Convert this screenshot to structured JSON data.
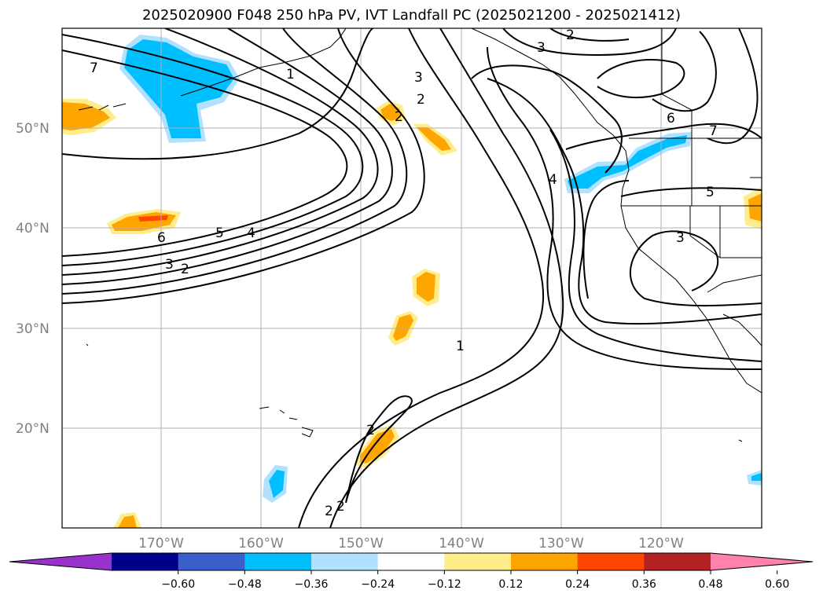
{
  "title": "2025020900 F048 250 hPa PV, IVT Landfall PC (2025021200 - 2025021412)",
  "map": {
    "lat_labels": [
      "50°N",
      "40°N",
      "30°N",
      "20°N"
    ],
    "lon_labels": [
      "170°W",
      "160°W",
      "150°W",
      "140°W",
      "130°W",
      "120°W"
    ],
    "contour_labels": [
      "7",
      "1",
      "3",
      "2",
      "3",
      "2",
      "2",
      "4",
      "6",
      "7",
      "5",
      "3",
      "6",
      "5",
      "4",
      "3",
      "2",
      "1",
      "2",
      "2",
      "2"
    ]
  },
  "colorbar": {
    "ticks": [
      "−0.60",
      "−0.48",
      "−0.36",
      "−0.24",
      "−0.12",
      "0.12",
      "0.24",
      "0.36",
      "0.48",
      "0.60"
    ],
    "colors": [
      "#9932cc",
      "#00008b",
      "#3a5fcd",
      "#00bfff",
      "#b0e2ff",
      "#ffffff",
      "#ffec8b",
      "#ffa500",
      "#ff4500",
      "#b22222",
      "#ff82ab"
    ]
  }
}
